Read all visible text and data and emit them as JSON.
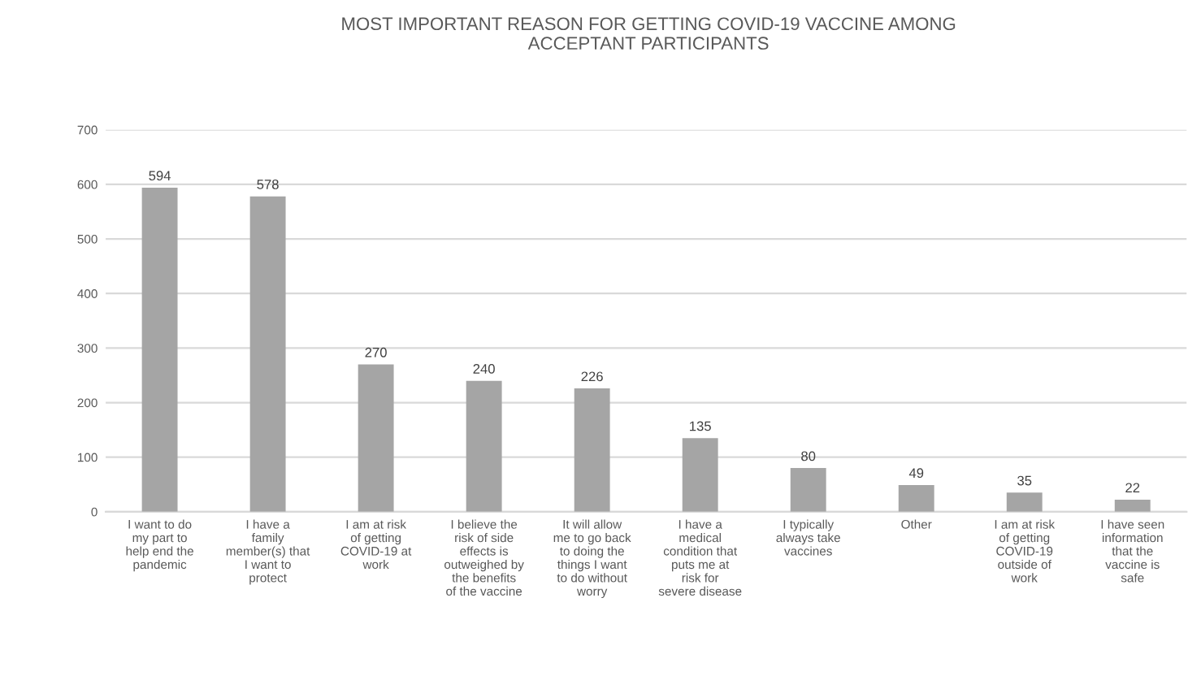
{
  "chart_data": {
    "type": "bar",
    "title": "MOST IMPORTANT REASON FOR GETTING COVID-19 VACCINE AMONG\nACCEPTANT PARTICIPANTS",
    "categories": [
      "I want to do my part to help end the pandemic",
      "I have a family member(s) that I want to protect",
      "I am at risk of getting COVID-19 at work",
      "I believe the risk of side effects is outweighed by the benefits of the vaccine",
      "It will allow me to go back to doing the things I want to do without worry",
      "I have a medical condition that puts me at risk for severe disease",
      "I typically always take vaccines",
      "Other",
      "I am at risk of getting COVID-19 outside of work",
      "I have seen information that the vaccine is safe"
    ],
    "values": [
      594,
      578,
      270,
      240,
      226,
      135,
      80,
      49,
      35,
      22
    ],
    "color": "#a5a5a5",
    "data_labels": true,
    "grid": "y",
    "ylim": [
      0,
      700
    ],
    "yticks": [
      0,
      100,
      200,
      300,
      400,
      500,
      600,
      700
    ]
  }
}
